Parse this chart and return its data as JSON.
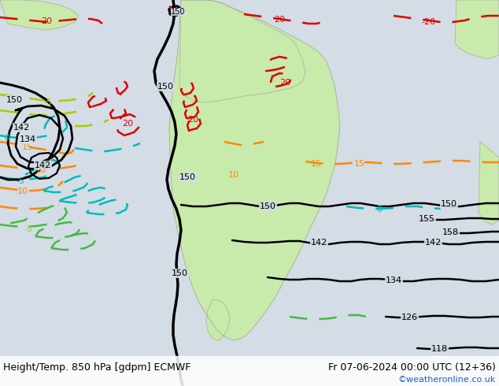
{
  "title_left": "Height/Temp. 850 hPa [gdpm] ECMWF",
  "title_right": "Fr 07-06-2024 00:00 UTC (12+36)",
  "copyright": "©weatheronline.co.uk",
  "bg_color": "#d4dce6",
  "land_color": "#c8eaaa",
  "land_border_color": "#aaaaaa",
  "fig_width": 6.34,
  "fig_height": 4.9,
  "dpi": 100,
  "bottom_text_color": "#000000",
  "copyright_color": "#1a5fcc"
}
